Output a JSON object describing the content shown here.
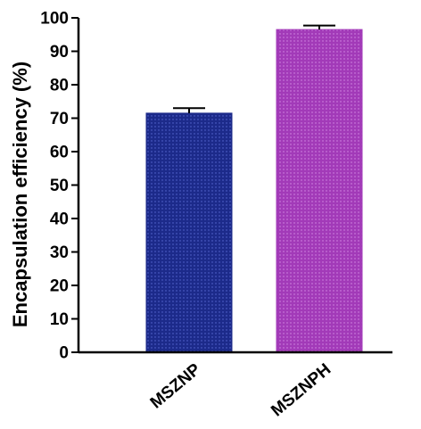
{
  "chart_data": {
    "type": "bar",
    "categories": [
      "MSZNP",
      "MSZNPH"
    ],
    "values": [
      71.5,
      96.5
    ],
    "errors": [
      1.5,
      1.2
    ],
    "title": "",
    "xlabel": "",
    "ylabel": "Encapsulation efficiency (%)",
    "ylim": [
      0,
      100
    ],
    "yticks": [
      0,
      10,
      20,
      30,
      40,
      50,
      60,
      70,
      80,
      90,
      100
    ],
    "ytick_labels": [
      "0",
      "10",
      "20",
      "30",
      "40",
      "50",
      "60",
      "70",
      "80",
      "90",
      "100"
    ],
    "grid": false,
    "legend": "none",
    "colors": [
      "#1c2a8a",
      "#a23ab8"
    ],
    "pattern": "dotted-fill"
  }
}
